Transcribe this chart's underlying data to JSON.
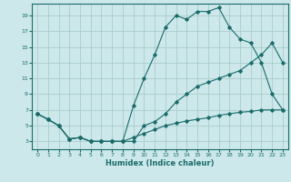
{
  "title": "",
  "xlabel": "Humidex (Indice chaleur)",
  "bg_color": "#cce8ea",
  "grid_color": "#aacccc",
  "line_color": "#1a6b6b",
  "xlim": [
    -0.5,
    23.5
  ],
  "ylim": [
    2.0,
    20.5
  ],
  "xticks": [
    0,
    1,
    2,
    3,
    4,
    5,
    6,
    7,
    8,
    9,
    10,
    11,
    12,
    13,
    14,
    15,
    16,
    17,
    18,
    19,
    20,
    21,
    22,
    23
  ],
  "yticks": [
    3,
    5,
    7,
    9,
    11,
    13,
    15,
    17,
    19
  ],
  "curve1_x": [
    0,
    1,
    2,
    3,
    4,
    5,
    6,
    7,
    8,
    9,
    10,
    11,
    12,
    13,
    14,
    15,
    16,
    17,
    18,
    19,
    20,
    21,
    22,
    23
  ],
  "curve1_y": [
    6.5,
    5.8,
    5.0,
    3.3,
    3.5,
    3.0,
    3.0,
    3.0,
    3.0,
    7.5,
    11.0,
    14.0,
    17.5,
    19.0,
    18.5,
    19.5,
    19.5,
    20.0,
    17.5,
    16.0,
    15.5,
    13.0,
    9.0,
    7.0
  ],
  "curve2_x": [
    0,
    1,
    2,
    3,
    4,
    5,
    6,
    7,
    8,
    9,
    10,
    11,
    12,
    13,
    14,
    15,
    16,
    17,
    18,
    19,
    20,
    21,
    22,
    23
  ],
  "curve2_y": [
    6.5,
    5.8,
    5.0,
    3.3,
    3.5,
    3.0,
    3.0,
    3.0,
    3.0,
    3.0,
    5.0,
    5.5,
    6.5,
    8.0,
    9.0,
    10.0,
    10.5,
    11.0,
    11.5,
    12.0,
    13.0,
    14.0,
    15.5,
    13.0
  ],
  "curve3_x": [
    0,
    1,
    2,
    3,
    4,
    5,
    6,
    7,
    8,
    9,
    10,
    11,
    12,
    13,
    14,
    15,
    16,
    17,
    18,
    19,
    20,
    21,
    22,
    23
  ],
  "curve3_y": [
    6.5,
    5.8,
    5.0,
    3.3,
    3.5,
    3.0,
    3.0,
    3.0,
    3.0,
    3.5,
    4.0,
    4.5,
    5.0,
    5.3,
    5.6,
    5.8,
    6.0,
    6.3,
    6.5,
    6.7,
    6.8,
    7.0,
    7.0,
    7.0
  ]
}
